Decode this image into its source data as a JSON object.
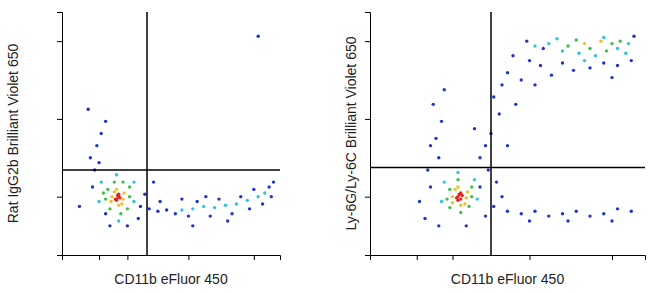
{
  "chart_data": [
    {
      "type": "scatter",
      "x_label": "CD11b eFluor 450",
      "y_label": "Rat IgG2b Brilliant Violet 650",
      "xlim": [
        0,
        100
      ],
      "ylim": [
        0,
        100
      ],
      "xticks": [
        17,
        30,
        58,
        88
      ],
      "yticks": [
        24,
        56,
        88
      ],
      "tick_labels": false,
      "gate_x": 39,
      "gate_y": 35,
      "series": [
        {
          "color": "#2233cc",
          "marker": "circle",
          "x": [
            14,
            15,
            17,
            13,
            16,
            18,
            36,
            40,
            44,
            48,
            52,
            58,
            62,
            68,
            72,
            78,
            82,
            86,
            92,
            95,
            97,
            96,
            55,
            45,
            38,
            30,
            22,
            20,
            35,
            88,
            76,
            66,
            60,
            20,
            12,
            90,
            8,
            42
          ],
          "values": [
            28,
            35,
            38,
            40,
            45,
            50,
            20,
            19,
            18,
            18.5,
            17,
            16,
            22,
            16,
            23,
            17,
            24,
            19,
            21,
            28,
            30,
            24,
            23,
            22,
            25,
            12,
            12,
            17,
            15,
            27,
            14,
            24,
            12,
            55,
            60,
            90,
            20,
            30
          ]
        },
        {
          "color": "#2ec4d8",
          "marker": "circle",
          "x": [
            17,
            33,
            25,
            26,
            18,
            33,
            60,
            65,
            70,
            75,
            80,
            85,
            90,
            93,
            55
          ],
          "values": [
            22,
            22,
            33,
            14,
            30,
            30,
            19,
            20,
            19.5,
            20.5,
            21,
            22.5,
            24,
            25.5,
            18.5
          ]
        },
        {
          "color": "#3cc24a",
          "marker": "circle",
          "x": [
            20,
            31,
            24,
            27,
            21,
            30,
            22,
            31,
            19,
            28
          ],
          "values": [
            23,
            24,
            30,
            17,
            27,
            19,
            19,
            28,
            25.5,
            30
          ]
        },
        {
          "color": "#f0c020",
          "marker": "circle",
          "x": [
            23,
            28,
            25,
            26,
            22.5,
            28.5,
            24,
            27.5
          ],
          "values": [
            24,
            23,
            27,
            20.5,
            22,
            25.5,
            26,
            21
          ]
        },
        {
          "color": "#e8201a",
          "marker": "circle",
          "x": [
            25,
            26,
            25.5,
            24.5,
            26.5,
            25,
            26
          ],
          "values": [
            23,
            24,
            24.5,
            23,
            23.5,
            22.5,
            25
          ]
        }
      ]
    },
    {
      "type": "scatter",
      "x_label": "CD11b eFluor 450",
      "y_label": "Ly-6G/Ly-6C Brilliant Violet 650",
      "xlim": [
        0,
        100
      ],
      "ylim": [
        0,
        100
      ],
      "xticks": [
        17,
        30,
        58,
        88
      ],
      "yticks": [
        24,
        56,
        88
      ],
      "tick_labels": false,
      "gate_x": 44,
      "gate_y": 36,
      "series": [
        {
          "color": "#2233cc",
          "marker": "circle",
          "x": [
            50,
            55,
            58,
            62,
            66,
            70,
            74,
            80,
            85,
            90,
            95,
            52,
            48,
            60,
            88,
            63,
            96,
            57,
            45,
            47,
            44,
            42,
            40,
            43,
            46,
            50,
            53,
            38,
            25,
            24,
            26,
            23,
            27,
            22,
            21,
            45,
            50,
            55,
            60,
            65,
            70,
            75,
            80,
            85,
            90,
            95,
            58,
            72,
            88,
            42,
            48,
            20,
            25,
            35,
            22,
            18,
            40
          ],
          "values": [
            75,
            72,
            80,
            78,
            74,
            79,
            76,
            77,
            79,
            78,
            80,
            82,
            70,
            70,
            73,
            85,
            90,
            88,
            65,
            58,
            50,
            45,
            40,
            35,
            30,
            45,
            62,
            52,
            40,
            48,
            55,
            62,
            68,
            45,
            35,
            20,
            18,
            17,
            18,
            16,
            17,
            18,
            16,
            17,
            19,
            18,
            14,
            14,
            14,
            16,
            24,
            15,
            12,
            12,
            28,
            22,
            28
          ]
        },
        {
          "color": "#2ec4d8",
          "marker": "circle",
          "x": [
            26,
            39,
            32,
            27,
            38,
            65,
            70,
            76,
            82,
            90,
            94,
            68,
            85,
            93,
            60,
            78
          ],
          "values": [
            22,
            23,
            34,
            30,
            31,
            87,
            84,
            83,
            82,
            85,
            87,
            89,
            89.5,
            83,
            86,
            80
          ]
        },
        {
          "color": "#3cc24a",
          "marker": "circle",
          "x": [
            28,
            37,
            32,
            33,
            29,
            36,
            29,
            37,
            72,
            80,
            88,
            75,
            86,
            91
          ],
          "values": [
            23,
            24,
            31,
            17.5,
            27,
            20,
            19.5,
            28,
            86,
            85,
            87,
            88.5,
            84,
            88
          ]
        },
        {
          "color": "#f0c020",
          "marker": "circle",
          "x": [
            30,
            35,
            32,
            33,
            30,
            35.5,
            31,
            34.5,
            78,
            84
          ],
          "values": [
            24,
            23.5,
            28,
            20.5,
            21.5,
            26,
            27,
            21,
            87,
            88
          ]
        },
        {
          "color": "#e8201a",
          "marker": "circle",
          "x": [
            32,
            33,
            32.5,
            31.5,
            33.5,
            32,
            33
          ],
          "values": [
            24,
            23,
            25,
            23.5,
            24.5,
            22.5,
            25.5
          ]
        }
      ]
    }
  ]
}
